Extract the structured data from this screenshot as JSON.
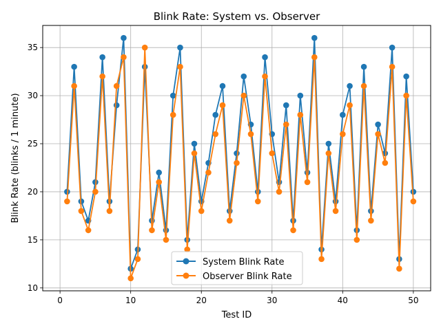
{
  "chart_data": {
    "type": "line",
    "title": "Blink Rate: System vs. Observer",
    "xlabel": "Test ID",
    "ylabel": "Blink Rate (blinks / 1 minute)",
    "xlim": [
      -2.45,
      52.45
    ],
    "ylim": [
      9.7,
      37.3
    ],
    "xticks": [
      0,
      10,
      20,
      30,
      40,
      50
    ],
    "yticks": [
      10,
      15,
      20,
      25,
      30,
      35
    ],
    "grid": true,
    "legend_position": "lower-center",
    "x": [
      1,
      2,
      3,
      4,
      5,
      6,
      7,
      8,
      9,
      10,
      11,
      12,
      13,
      14,
      15,
      16,
      17,
      18,
      19,
      20,
      21,
      22,
      23,
      24,
      25,
      26,
      27,
      28,
      29,
      30,
      31,
      32,
      33,
      34,
      35,
      36,
      37,
      38,
      39,
      40,
      41,
      42,
      43,
      44,
      45,
      46,
      47,
      48,
      49,
      50
    ],
    "series": [
      {
        "name": "System Blink Rate",
        "color": "#1f77b4",
        "values": [
          20,
          33,
          19,
          17,
          21,
          34,
          19,
          29,
          36,
          12,
          14,
          33,
          17,
          22,
          16,
          30,
          35,
          15,
          25,
          19,
          23,
          28,
          31,
          18,
          24,
          32,
          27,
          20,
          34,
          26,
          21,
          29,
          17,
          30,
          22,
          36,
          14,
          25,
          19,
          28,
          31,
          16,
          33,
          18,
          27,
          24,
          35,
          13,
          32,
          20
        ]
      },
      {
        "name": "Observer Blink Rate",
        "color": "#ff7f0e",
        "values": [
          19,
          31,
          18,
          16,
          20,
          32,
          18,
          31,
          34,
          11,
          13,
          35,
          16,
          21,
          15,
          28,
          33,
          14,
          24,
          18,
          22,
          26,
          29,
          17,
          23,
          30,
          26,
          19,
          32,
          24,
          20,
          27,
          16,
          28,
          21,
          34,
          13,
          24,
          18,
          26,
          29,
          15,
          31,
          17,
          26,
          23,
          33,
          12,
          30,
          19
        ]
      }
    ]
  }
}
